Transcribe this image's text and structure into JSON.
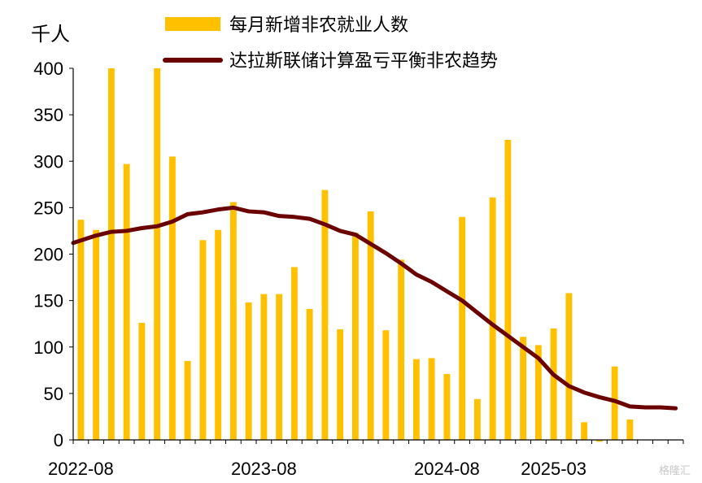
{
  "chart_data": {
    "type": "bar",
    "title": "",
    "ylabel": "千人",
    "xlabel": "",
    "ylim": [
      0,
      400
    ],
    "yticks": [
      0,
      50,
      100,
      150,
      200,
      250,
      300,
      350,
      400
    ],
    "xtick_labels": [
      "2022-08",
      "2023-08",
      "2024-08",
      "2025-03"
    ],
    "xtick_indices": [
      0,
      12,
      24,
      31
    ],
    "categories": [
      "2022-08",
      "2022-09",
      "2022-10",
      "2022-11",
      "2022-12",
      "2023-01",
      "2023-02",
      "2023-03",
      "2023-04",
      "2023-05",
      "2023-06",
      "2023-07",
      "2023-08",
      "2023-09",
      "2023-10",
      "2023-11",
      "2023-12",
      "2024-01",
      "2024-02",
      "2024-03",
      "2024-04",
      "2024-05",
      "2024-06",
      "2024-07",
      "2024-08",
      "2024-09",
      "2024-10",
      "2024-11",
      "2024-12",
      "2025-01",
      "2025-02",
      "2025-03",
      "2025-04",
      "2025-05",
      "2025-06",
      "2025-07",
      "2025-08",
      "2025-09",
      "2025-10",
      "2025-11"
    ],
    "series": [
      {
        "name": "每月新增非农就业人数",
        "type": "bar",
        "color": "#FFC000",
        "values": [
          237,
          226,
          400,
          297,
          126,
          400,
          305,
          85,
          215,
          226,
          256,
          148,
          157,
          157,
          186,
          141,
          269,
          119,
          223,
          246,
          118,
          194,
          87,
          88,
          71,
          240,
          44,
          261,
          323,
          111,
          102,
          120,
          158,
          19,
          -2,
          79,
          22,
          null,
          null,
          null
        ]
      },
      {
        "name": "达拉斯联储计算盈亏平衡非农趋势",
        "type": "line",
        "color": "#6B0000",
        "values": [
          212,
          220,
          224,
          225,
          228,
          230,
          235,
          243,
          245,
          248,
          250,
          246,
          245,
          241,
          240,
          238,
          232,
          225,
          221,
          211,
          201,
          190,
          178,
          170,
          160,
          150,
          137,
          124,
          112,
          100,
          88,
          70,
          58,
          51,
          46,
          42,
          36,
          35,
          35,
          34
        ]
      }
    ],
    "grid": false,
    "legend_position": "top"
  },
  "watermark": "格隆汇"
}
